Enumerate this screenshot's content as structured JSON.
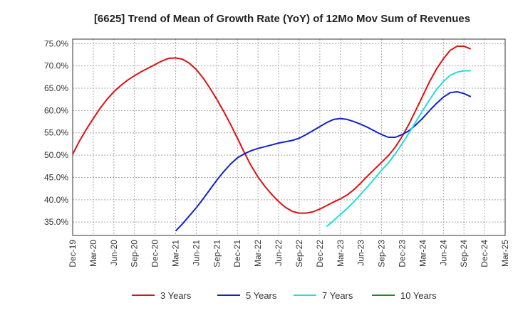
{
  "chart_data": {
    "type": "line",
    "title": "[6625]  Trend of Mean of Growth Rate (YoY) of 12Mo Mov Sum of Revenues",
    "xlabel": "",
    "ylabel": "",
    "ylim": [
      32,
      76
    ],
    "yticks": [
      35,
      40,
      45,
      50,
      55,
      60,
      65,
      70,
      75
    ],
    "ytick_labels": [
      "35.0%",
      "40.0%",
      "45.0%",
      "50.0%",
      "55.0%",
      "60.0%",
      "65.0%",
      "70.0%",
      "75.0%"
    ],
    "xticks": [
      "Dec-19",
      "Mar-20",
      "Jun-20",
      "Sep-20",
      "Dec-20",
      "Mar-21",
      "Jun-21",
      "Sep-21",
      "Dec-21",
      "Mar-22",
      "Jun-22",
      "Sep-22",
      "Dec-22",
      "Mar-23",
      "Jun-23",
      "Sep-23",
      "Dec-23",
      "Mar-24",
      "Jun-24",
      "Sep-24",
      "Dec-24",
      "Mar-25"
    ],
    "grid": true,
    "legend_position": "bottom",
    "series": [
      {
        "name": "3 Years",
        "color": "#dd1111",
        "points": [
          [
            0,
            50.2
          ],
          [
            1,
            53.2
          ],
          [
            2,
            55.8
          ],
          [
            3,
            58.2
          ],
          [
            4,
            60.5
          ],
          [
            5,
            62.5
          ],
          [
            6,
            64.2
          ],
          [
            7,
            65.6
          ],
          [
            8,
            66.8
          ],
          [
            9,
            67.8
          ],
          [
            10,
            68.7
          ],
          [
            11,
            69.5
          ],
          [
            12,
            70.3
          ],
          [
            13,
            71.1
          ],
          [
            14,
            71.7
          ],
          [
            15,
            71.8
          ],
          [
            16,
            71.5
          ],
          [
            17,
            70.6
          ],
          [
            18,
            69.2
          ],
          [
            19,
            67.3
          ],
          [
            20,
            65.0
          ],
          [
            21,
            62.5
          ],
          [
            22,
            59.8
          ],
          [
            23,
            56.9
          ],
          [
            24,
            53.8
          ],
          [
            25,
            50.6
          ],
          [
            26,
            47.6
          ],
          [
            27,
            45.1
          ],
          [
            28,
            43.0
          ],
          [
            29,
            41.2
          ],
          [
            30,
            39.6
          ],
          [
            31,
            38.3
          ],
          [
            32,
            37.4
          ],
          [
            33,
            37.0
          ],
          [
            34,
            37.0
          ],
          [
            35,
            37.3
          ],
          [
            36,
            37.9
          ],
          [
            37,
            38.7
          ],
          [
            38,
            39.5
          ],
          [
            39,
            40.2
          ],
          [
            40,
            41.1
          ],
          [
            41,
            42.3
          ],
          [
            42,
            43.8
          ],
          [
            43,
            45.4
          ],
          [
            44,
            46.9
          ],
          [
            45,
            48.4
          ],
          [
            46,
            49.9
          ],
          [
            47,
            51.8
          ],
          [
            48,
            54.2
          ],
          [
            49,
            57.0
          ],
          [
            50,
            60.1
          ],
          [
            51,
            63.3
          ],
          [
            52,
            66.5
          ],
          [
            53,
            69.3
          ],
          [
            54,
            71.6
          ],
          [
            55,
            73.5
          ],
          [
            56,
            74.4
          ],
          [
            57,
            74.4
          ],
          [
            58,
            73.8
          ]
        ]
      },
      {
        "name": "5 Years",
        "color": "#1122cc",
        "points": [
          [
            15,
            33.0
          ],
          [
            16,
            34.6
          ],
          [
            17,
            36.4
          ],
          [
            18,
            38.2
          ],
          [
            19,
            40.2
          ],
          [
            20,
            42.3
          ],
          [
            21,
            44.4
          ],
          [
            22,
            46.3
          ],
          [
            23,
            48.0
          ],
          [
            24,
            49.4
          ],
          [
            25,
            50.3
          ],
          [
            26,
            51.0
          ],
          [
            27,
            51.5
          ],
          [
            28,
            51.9
          ],
          [
            29,
            52.3
          ],
          [
            30,
            52.7
          ],
          [
            31,
            53.0
          ],
          [
            32,
            53.3
          ],
          [
            33,
            53.8
          ],
          [
            34,
            54.6
          ],
          [
            35,
            55.5
          ],
          [
            36,
            56.4
          ],
          [
            37,
            57.3
          ],
          [
            38,
            58.0
          ],
          [
            39,
            58.2
          ],
          [
            40,
            58.0
          ],
          [
            41,
            57.5
          ],
          [
            42,
            56.9
          ],
          [
            43,
            56.2
          ],
          [
            44,
            55.4
          ],
          [
            45,
            54.6
          ],
          [
            46,
            54.0
          ],
          [
            47,
            54.0
          ],
          [
            48,
            54.6
          ],
          [
            49,
            55.5
          ],
          [
            50,
            56.8
          ],
          [
            51,
            58.3
          ],
          [
            52,
            60.0
          ],
          [
            53,
            61.6
          ],
          [
            54,
            63.0
          ],
          [
            55,
            64.0
          ],
          [
            56,
            64.2
          ],
          [
            57,
            63.8
          ],
          [
            58,
            63.1
          ]
        ]
      },
      {
        "name": "7 Years",
        "color": "#22dddd",
        "points": [
          [
            37,
            34.0
          ],
          [
            38,
            35.3
          ],
          [
            39,
            36.7
          ],
          [
            40,
            38.1
          ],
          [
            41,
            39.6
          ],
          [
            42,
            41.3
          ],
          [
            43,
            43.0
          ],
          [
            44,
            44.8
          ],
          [
            45,
            46.6
          ],
          [
            46,
            48.3
          ],
          [
            47,
            50.3
          ],
          [
            48,
            52.6
          ],
          [
            49,
            55.0
          ],
          [
            50,
            57.5
          ],
          [
            51,
            60.0
          ],
          [
            52,
            62.4
          ],
          [
            53,
            64.7
          ],
          [
            54,
            66.5
          ],
          [
            55,
            67.9
          ],
          [
            56,
            68.6
          ],
          [
            57,
            68.9
          ],
          [
            58,
            68.9
          ]
        ]
      },
      {
        "name": "10 Years",
        "color": "#228822",
        "points": []
      }
    ]
  }
}
